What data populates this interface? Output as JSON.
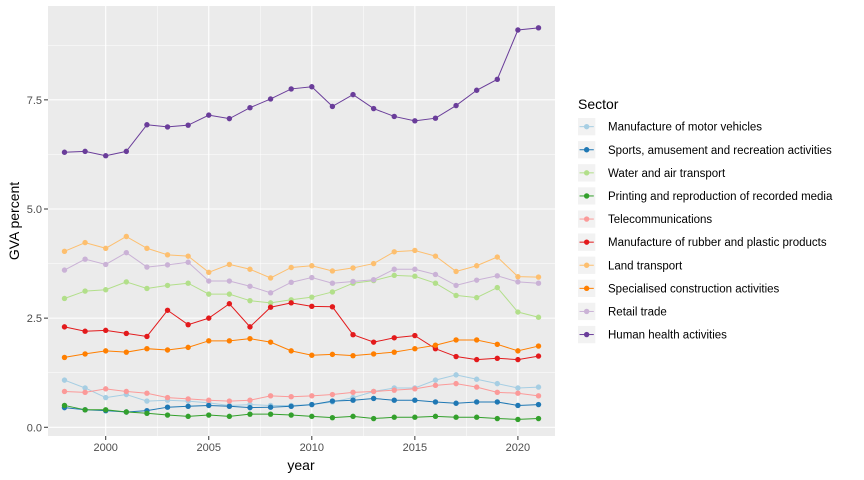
{
  "chart_data": {
    "type": "line",
    "xlabel": "year",
    "ylabel": "GVA percent",
    "xlim": [
      1997.2,
      2021.8
    ],
    "ylim": [
      -0.2,
      9.65
    ],
    "x_ticks": [
      2000,
      2005,
      2010,
      2015,
      2020
    ],
    "x_tick_labels": [
      "2000",
      "2005",
      "2010",
      "2015",
      "2020"
    ],
    "y_ticks": [
      0,
      2.5,
      5,
      7.5
    ],
    "y_tick_labels": [
      "0.0",
      "2.5",
      "5.0",
      "7.5"
    ],
    "grid": true,
    "legend_title": "Sector",
    "legend_position": "right",
    "x": [
      1998,
      1999,
      2000,
      2001,
      2002,
      2003,
      2004,
      2005,
      2006,
      2007,
      2008,
      2009,
      2010,
      2011,
      2012,
      2013,
      2014,
      2015,
      2016,
      2017,
      2018,
      2019,
      2020,
      2021
    ],
    "series": [
      {
        "name": "Manufacture of motor vehicles",
        "color": "#a6cee3",
        "values": [
          1.08,
          0.9,
          0.68,
          0.75,
          0.6,
          0.62,
          0.6,
          0.56,
          0.5,
          0.52,
          0.5,
          0.5,
          0.52,
          0.58,
          0.68,
          0.82,
          0.9,
          0.9,
          1.08,
          1.2,
          1.1,
          1.0,
          0.9,
          0.92
        ]
      },
      {
        "name": "Sports, amusement and recreation activities",
        "color": "#1f78b4",
        "values": [
          0.45,
          0.4,
          0.38,
          0.35,
          0.38,
          0.46,
          0.48,
          0.5,
          0.48,
          0.45,
          0.46,
          0.48,
          0.52,
          0.6,
          0.62,
          0.66,
          0.62,
          0.62,
          0.58,
          0.55,
          0.58,
          0.58,
          0.5,
          0.52
        ]
      },
      {
        "name": "Water and air transport",
        "color": "#b2df8a",
        "values": [
          2.95,
          3.12,
          3.15,
          3.33,
          3.18,
          3.25,
          3.3,
          3.05,
          3.05,
          2.9,
          2.85,
          2.92,
          2.98,
          3.1,
          3.3,
          3.36,
          3.48,
          3.46,
          3.3,
          3.02,
          2.97,
          3.2,
          2.64,
          2.52
        ]
      },
      {
        "name": "Printing and reproduction of recorded media",
        "color": "#33a02c",
        "values": [
          0.5,
          0.4,
          0.4,
          0.35,
          0.32,
          0.28,
          0.25,
          0.28,
          0.25,
          0.3,
          0.3,
          0.28,
          0.25,
          0.22,
          0.25,
          0.2,
          0.23,
          0.23,
          0.25,
          0.23,
          0.23,
          0.2,
          0.18,
          0.2
        ]
      },
      {
        "name": "Telecommunications",
        "color": "#fb9a99",
        "values": [
          0.82,
          0.8,
          0.88,
          0.82,
          0.78,
          0.68,
          0.65,
          0.62,
          0.6,
          0.62,
          0.72,
          0.7,
          0.72,
          0.75,
          0.8,
          0.82,
          0.85,
          0.88,
          0.96,
          1.0,
          0.92,
          0.8,
          0.78,
          0.72
        ]
      },
      {
        "name": "Manufacture of rubber and plastic products",
        "color": "#e31a1c",
        "values": [
          2.3,
          2.2,
          2.22,
          2.15,
          2.08,
          2.68,
          2.35,
          2.5,
          2.83,
          2.3,
          2.75,
          2.85,
          2.77,
          2.76,
          2.12,
          1.95,
          2.05,
          2.1,
          1.8,
          1.62,
          1.55,
          1.58,
          1.55,
          1.63
        ]
      },
      {
        "name": "Land transport",
        "color": "#fdbf6f",
        "values": [
          4.03,
          4.23,
          4.1,
          4.37,
          4.1,
          3.95,
          3.92,
          3.55,
          3.73,
          3.62,
          3.42,
          3.66,
          3.7,
          3.58,
          3.65,
          3.75,
          4.02,
          4.05,
          3.92,
          3.57,
          3.7,
          3.9,
          3.45,
          3.44
        ]
      },
      {
        "name": "Specialised construction activities",
        "color": "#ff7f00",
        "values": [
          1.6,
          1.68,
          1.75,
          1.72,
          1.8,
          1.77,
          1.83,
          1.98,
          1.98,
          2.03,
          1.95,
          1.75,
          1.65,
          1.67,
          1.64,
          1.68,
          1.72,
          1.8,
          1.88,
          2.0,
          2.0,
          1.9,
          1.75,
          1.86
        ]
      },
      {
        "name": "Retail trade",
        "color": "#cab2d6",
        "values": [
          3.6,
          3.85,
          3.73,
          4.0,
          3.67,
          3.72,
          3.78,
          3.35,
          3.35,
          3.23,
          3.08,
          3.32,
          3.43,
          3.3,
          3.34,
          3.38,
          3.62,
          3.62,
          3.5,
          3.25,
          3.37,
          3.47,
          3.33,
          3.3
        ]
      },
      {
        "name": "Human health activities",
        "color": "#6a3d9a",
        "values": [
          6.3,
          6.32,
          6.22,
          6.32,
          6.93,
          6.88,
          6.92,
          7.15,
          7.07,
          7.32,
          7.52,
          7.75,
          7.8,
          7.35,
          7.62,
          7.3,
          7.12,
          7.02,
          7.08,
          7.37,
          7.72,
          7.97,
          9.1,
          9.15
        ]
      }
    ]
  }
}
